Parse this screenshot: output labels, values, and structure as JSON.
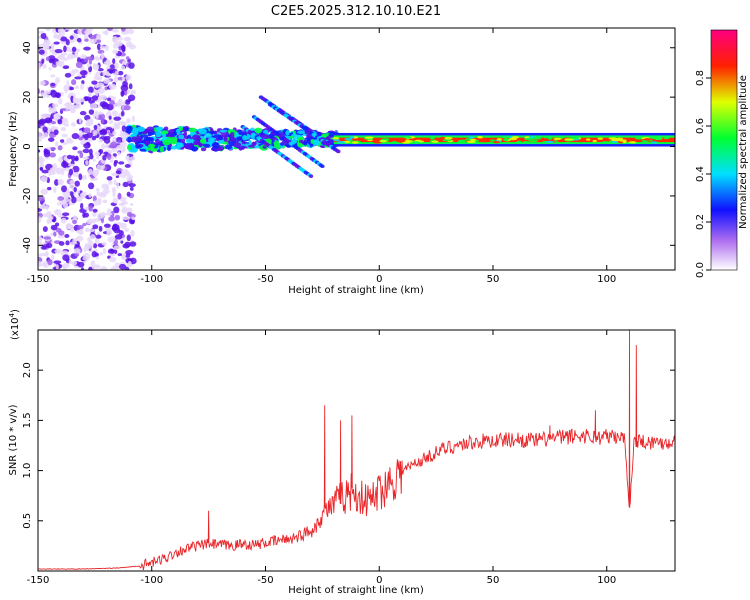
{
  "title": "C2E5.2025.312.10.10.E21",
  "chart_data": [
    {
      "type": "heatmap",
      "xlabel": "Height of straight line (km)",
      "ylabel": "Frequency (Hz)",
      "xlim": [
        -150,
        130
      ],
      "ylim": [
        -50,
        48
      ],
      "xticks": [
        -150,
        -100,
        -50,
        0,
        50,
        100
      ],
      "yticks": [
        -40,
        -20,
        0,
        20,
        40
      ],
      "colorbar": {
        "label": "Normalized spectral amplitude",
        "range": [
          0,
          1
        ],
        "ticks": [
          "0.0",
          "0.2",
          "0.4",
          "0.6",
          "0.8"
        ],
        "ticks_values": [
          0,
          0.2,
          0.4,
          0.6,
          0.8
        ],
        "colors": [
          "#ffffff",
          "#8a2be2",
          "#1010ff",
          "#00ffff",
          "#00ff00",
          "#ffff00",
          "#ff0000",
          "#ff00a0"
        ]
      },
      "features": [
        {
          "name": "noise-cloud",
          "x_range": [
            -150,
            -108
          ],
          "freq_range": [
            -50,
            48
          ],
          "amplitude": 0.15
        },
        {
          "name": "dispersive-band",
          "x_range": [
            -110,
            -20
          ],
          "freq_center": 3,
          "amplitude": 0.45
        },
        {
          "name": "chirp-streaks",
          "x_range": [
            -55,
            -15
          ],
          "freq_range": [
            -12,
            20
          ],
          "amplitude": 0.3
        },
        {
          "name": "steady-line",
          "x_range": [
            -20,
            130
          ],
          "freq_center": 2.5,
          "amplitude": 0.9
        }
      ]
    },
    {
      "type": "line",
      "xlabel": "Height of straight line (km)",
      "ylabel": "SNR (10 * v/v)",
      "multiplier": "(x10",
      "multiplier_exp": "4",
      "xlim": [
        -150,
        130
      ],
      "ylim": [
        0,
        2.4
      ],
      "xticks": [
        -150,
        -100,
        -50,
        0,
        50,
        100
      ],
      "yticks": [
        "0.5",
        "1.0",
        "1.5",
        "2.0"
      ],
      "yticks_values": [
        0.5,
        1.0,
        1.5,
        2.0
      ],
      "color": "#e8262a",
      "series": [
        {
          "name": "SNR",
          "x": [
            -150,
            -130,
            -115,
            -105,
            -100,
            -95,
            -90,
            -85,
            -80,
            -75,
            -70,
            -65,
            -60,
            -55,
            -50,
            -45,
            -40,
            -35,
            -30,
            -27,
            -24,
            -21,
            -18,
            -15,
            -12,
            -9,
            -6,
            -3,
            0,
            3,
            6,
            9,
            12,
            15,
            20,
            25,
            30,
            40,
            50,
            60,
            70,
            75,
            80,
            85,
            90,
            95,
            100,
            105,
            108,
            110,
            112,
            115,
            120,
            125,
            130
          ],
          "y": [
            0.02,
            0.02,
            0.03,
            0.05,
            0.08,
            0.12,
            0.18,
            0.22,
            0.25,
            0.27,
            0.26,
            0.25,
            0.27,
            0.26,
            0.28,
            0.3,
            0.32,
            0.35,
            0.4,
            0.48,
            0.6,
            0.65,
            0.7,
            0.75,
            0.8,
            0.75,
            0.7,
            0.72,
            0.8,
            0.85,
            0.92,
            0.98,
            1.02,
            1.06,
            1.12,
            1.18,
            1.23,
            1.28,
            1.3,
            1.31,
            1.3,
            1.32,
            1.33,
            1.34,
            1.35,
            1.33,
            1.34,
            1.33,
            1.32,
            0.6,
            1.3,
            1.3,
            1.28,
            1.28,
            1.29
          ],
          "spikes": [
            {
              "x": -75,
              "y": 0.6
            },
            {
              "x": -24,
              "y": 1.65
            },
            {
              "x": -17,
              "y": 1.5
            },
            {
              "x": -12,
              "y": 1.55
            },
            {
              "x": 10,
              "y": 1.1
            },
            {
              "x": 75,
              "y": 1.45
            },
            {
              "x": 95,
              "y": 1.6
            },
            {
              "x": 110,
              "y": 2.4
            },
            {
              "x": 113,
              "y": 2.25
            }
          ]
        }
      ]
    }
  ]
}
